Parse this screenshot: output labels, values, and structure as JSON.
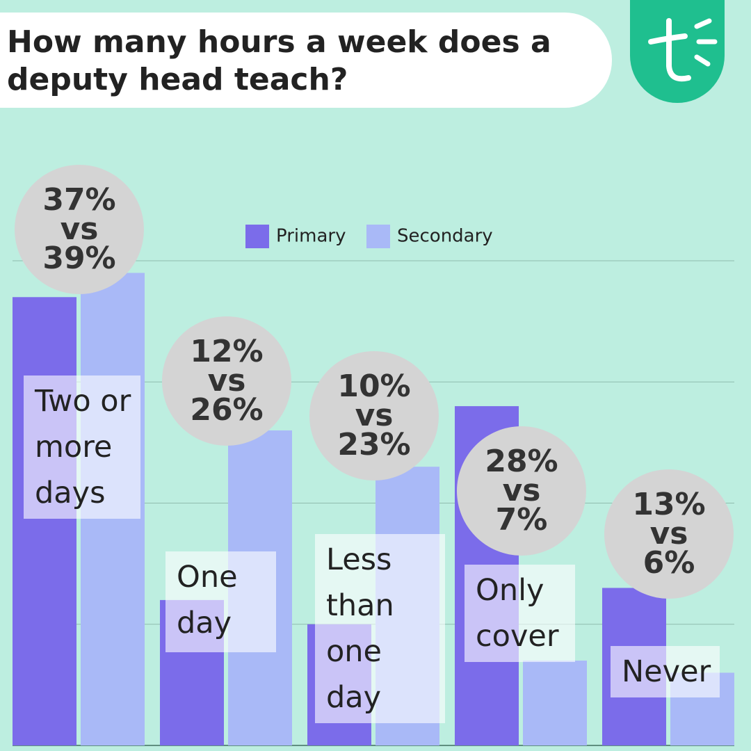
{
  "chart_data": {
    "type": "bar",
    "title": "How many hours a week does a deputy head teach?",
    "categories": [
      "Two or more days",
      "One day",
      "Less than one day",
      "Only cover",
      "Never"
    ],
    "series": [
      {
        "name": "Primary",
        "color": "#7b6cea",
        "values": [
          37,
          12,
          10,
          28,
          13
        ],
        "value_labels": [
          "37%",
          "12%",
          "10%",
          "28%",
          "13%"
        ]
      },
      {
        "name": "Secondary",
        "color": "#a9b9f7",
        "values": [
          39,
          26,
          23,
          7,
          6
        ],
        "value_labels": [
          "39%",
          "26%",
          "23%",
          "7%",
          "6%"
        ]
      }
    ],
    "label_separator": "vs",
    "ylim": [
      0,
      40
    ],
    "yticks": [
      0,
      10,
      20,
      30,
      40
    ],
    "grid": true
  }
}
